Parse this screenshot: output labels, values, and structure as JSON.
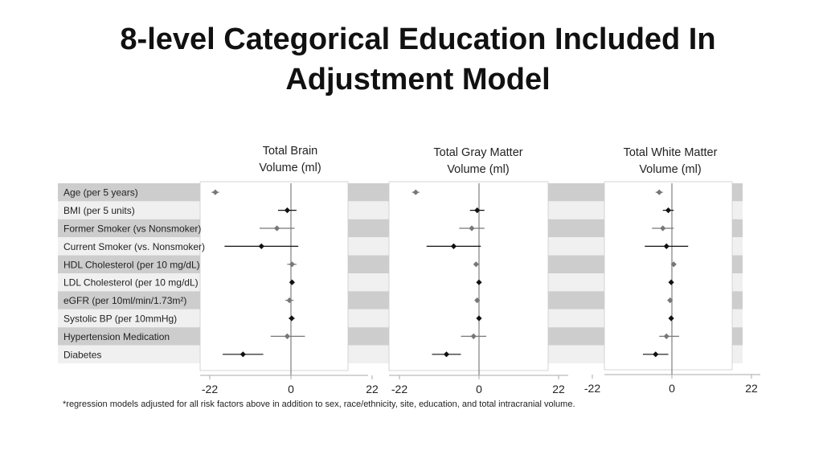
{
  "title": "8-level Categorical Education Included In Adjustment Model",
  "footnote": "*regression models adjusted for all risk factors above in addition to sex, race/ethnicity, site, education, and total intracranial volume.",
  "colors": {
    "band_dark": "#cdcdcd",
    "band_light": "#f0f0f0",
    "marker": "#111111",
    "marker_faded": "#777777"
  },
  "chart_data": {
    "type": "forest",
    "xlim": [
      -25,
      25
    ],
    "xticks": [
      "-22",
      "0",
      "22"
    ],
    "grid": false,
    "rows": [
      "Age (per 5 years)",
      "BMI (per 5 units)",
      "Former Smoker (vs Nonsmoker)",
      "Current Smoker (vs. Nonsmoker)",
      "HDL Cholesterol (per 10 mg/dL)",
      "LDL Cholesterol (per 10 mg/dL)",
      "eGFR (per 10ml/min/1.73m²)",
      "Systolic BP (per 10mmHg)",
      "Hypertension Medication",
      "Diabetes"
    ],
    "panels": [
      {
        "title_line1": "Total Brain",
        "title_line2": "Volume (ml)",
        "estimates": [
          -20.5,
          -1.0,
          -3.8,
          -8.0,
          0.3,
          0.3,
          -0.4,
          0.2,
          -1.0,
          -13.0
        ],
        "lower": [
          -21.5,
          -3.5,
          -8.5,
          -18.0,
          -1.0,
          -0.2,
          -1.5,
          -0.6,
          -5.5,
          -18.5
        ],
        "upper": [
          -19.5,
          1.5,
          1.0,
          2.0,
          1.5,
          0.8,
          0.7,
          1.0,
          3.8,
          -7.5
        ],
        "faded": [
          true,
          false,
          true,
          false,
          true,
          false,
          true,
          false,
          true,
          false
        ]
      },
      {
        "title_line1": "Total Gray Matter",
        "title_line2": "Volume (ml)",
        "estimates": [
          -17.5,
          -0.5,
          -2.0,
          -7.0,
          -0.8,
          0.0,
          -0.5,
          0.0,
          -1.5,
          -9.0
        ],
        "lower": [
          -18.5,
          -2.5,
          -5.5,
          -14.5,
          -1.5,
          -0.3,
          -1.2,
          -0.6,
          -5.0,
          -13.0
        ],
        "upper": [
          -16.5,
          1.5,
          1.5,
          0.5,
          0.0,
          0.3,
          0.2,
          0.6,
          2.0,
          -5.0
        ],
        "faded": [
          true,
          false,
          true,
          false,
          true,
          false,
          true,
          false,
          true,
          false
        ]
      },
      {
        "title_line1": "Total White Matter",
        "title_line2": "Volume (ml)",
        "estimates": [
          -3.5,
          -1.0,
          -2.5,
          -1.5,
          0.5,
          -0.2,
          -0.5,
          -0.2,
          -1.5,
          -4.5
        ],
        "lower": [
          -4.5,
          -2.5,
          -5.5,
          -7.5,
          0.0,
          -0.6,
          -1.0,
          -0.6,
          -3.5,
          -8.0
        ],
        "upper": [
          -2.5,
          0.5,
          0.5,
          4.5,
          1.0,
          0.2,
          0.0,
          0.2,
          2.0,
          -1.0
        ],
        "faded": [
          true,
          false,
          true,
          false,
          true,
          false,
          true,
          false,
          true,
          false
        ]
      }
    ]
  }
}
